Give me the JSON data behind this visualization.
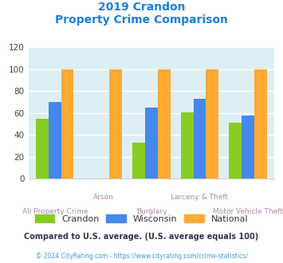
{
  "title_line1": "2019 Crandon",
  "title_line2": "Property Crime Comparison",
  "title_color": "#1a7fdd",
  "categories": [
    "All Property Crime",
    "Arson",
    "Burglary",
    "Larceny & Theft",
    "Motor Vehicle Theft"
  ],
  "crandon": [
    55,
    0,
    33,
    61,
    51
  ],
  "wisconsin": [
    70,
    0,
    65,
    73,
    58
  ],
  "national": [
    100,
    100,
    100,
    100,
    100
  ],
  "crandon_color": "#88cc22",
  "wisconsin_color": "#4488ee",
  "national_color": "#ffaa33",
  "ylim": [
    0,
    120
  ],
  "yticks": [
    0,
    20,
    40,
    60,
    80,
    100,
    120
  ],
  "plot_bg_color": "#ddeef5",
  "grid_color": "#ffffff",
  "xlabel_color": "#aa88aa",
  "legend_labels": [
    "Crandon",
    "Wisconsin",
    "National"
  ],
  "footnote1": "Compared to U.S. average. (U.S. average equals 100)",
  "footnote2": "© 2024 CityRating.com - https://www.cityrating.com/crime-statistics/",
  "footnote1_color": "#333355",
  "footnote2_color": "#4499cc"
}
